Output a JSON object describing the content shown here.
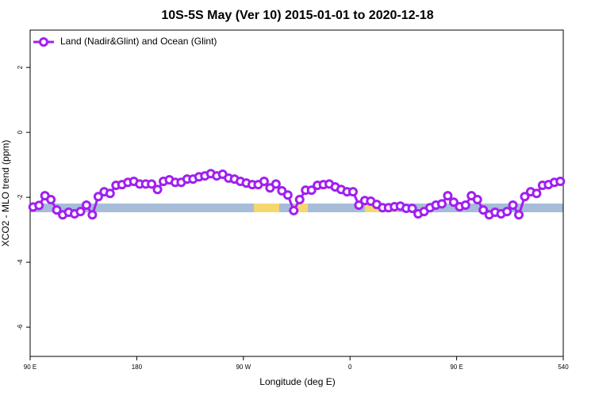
{
  "chart_data": {
    "type": "line",
    "title": "10S-5S May (Ver 10)   2015-01-01 to 2020-12-18",
    "x_label": "Longitude (deg E)",
    "y_label": "XCO2 - MLO trend (ppm)",
    "xlim": [
      90,
      540
    ],
    "ylim": [
      -6.9,
      3.15
    ],
    "xticks": [
      {
        "value": 90,
        "label": "90 E"
      },
      180,
      {
        "value": 270,
        "label": "90 W"
      },
      {
        "value": 360,
        "label": "0"
      },
      {
        "value": 450,
        "label": "90 E"
      },
      540
    ],
    "yticks": [
      2,
      0,
      -2,
      -4,
      -6
    ],
    "legend": "top-left",
    "x": [
      92.5,
      97.5,
      102.5,
      107.5,
      112.5,
      117.5,
      122.5,
      127.5,
      132.5,
      137.5,
      142.5,
      147.5,
      152.5,
      157.5,
      162.5,
      167.5,
      172.5,
      177.5,
      182.5,
      187.5,
      192.5,
      197.5,
      202.5,
      207.5,
      212.5,
      217.5,
      222.5,
      227.5,
      232.5,
      237.5,
      242.5,
      247.5,
      252.5,
      257.5,
      262.5,
      267.5,
      272.5,
      277.5,
      282.5,
      287.5,
      292.5,
      297.5,
      302.5,
      307.5,
      312.5,
      317.5,
      322.5,
      327.5,
      332.5,
      337.5,
      342.5,
      347.5,
      352.5,
      357.5,
      362.5,
      367.5,
      372.5,
      377.5,
      382.5,
      387.5,
      392.5,
      397.5,
      402.5,
      407.5,
      412.5,
      417.5,
      422.5,
      427.5,
      432.5,
      437.5,
      442.5,
      447.5,
      452.5,
      457.5,
      462.5,
      467.5,
      472.5,
      477.5,
      482.5,
      487.5,
      492.5,
      497.5,
      502.5,
      507.5,
      512.5,
      517.5,
      522.5,
      527.5,
      532.5,
      537.5
    ],
    "series": [
      {
        "name": "Land (Nadir&Glint) and Ocean (Glint)",
        "color": "#a020f0",
        "values": [
          -2.3,
          -2.25,
          -1.95,
          -2.07,
          -2.39,
          -2.54,
          -2.46,
          -2.51,
          -2.44,
          -2.24,
          -2.54,
          -1.98,
          -1.83,
          -1.88,
          -1.63,
          -1.61,
          -1.54,
          -1.51,
          -1.59,
          -1.59,
          -1.59,
          -1.76,
          -1.51,
          -1.46,
          -1.54,
          -1.54,
          -1.44,
          -1.44,
          -1.37,
          -1.34,
          -1.27,
          -1.34,
          -1.29,
          -1.41,
          -1.44,
          -1.51,
          -1.56,
          -1.61,
          -1.61,
          -1.51,
          -1.71,
          -1.59,
          -1.8,
          -1.93,
          -2.41,
          -2.07,
          -1.78,
          -1.78,
          -1.63,
          -1.61,
          -1.59,
          -1.68,
          -1.76,
          -1.83,
          -1.83,
          -2.24,
          -2.1,
          -2.12,
          -2.22,
          -2.32,
          -2.32,
          -2.29,
          -2.27,
          -2.34,
          -2.34,
          -2.51,
          -2.44,
          -2.32,
          -2.24,
          -2.2,
          -1.95,
          -2.15,
          -2.29,
          -2.24,
          -1.95,
          -2.07,
          -2.39,
          -2.54,
          -2.46,
          -2.51,
          -2.44,
          -2.24,
          -2.54,
          -1.98,
          -1.83,
          -1.88,
          -1.63,
          -1.61,
          -1.54,
          -1.51
        ]
      }
    ]
  }
}
